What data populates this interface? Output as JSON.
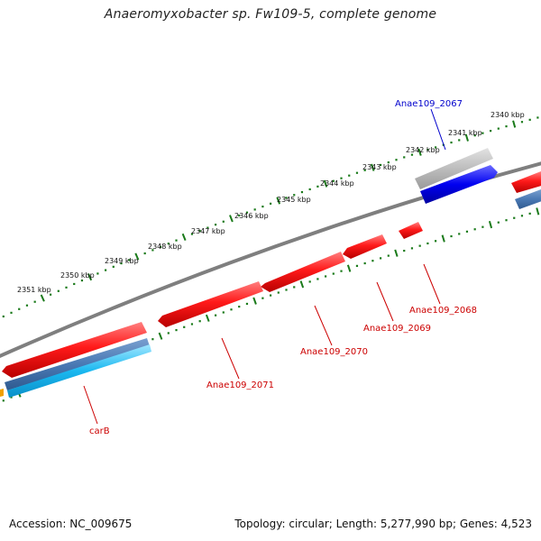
{
  "title": "Anaeromyxobacter sp. Fw109-5, complete genome",
  "footer": {
    "accession": "Accession: NC_009675",
    "summary": "Topology: circular; Length: 5,277,990 bp; Genes: 4,523"
  },
  "colors": {
    "forward_cds": "#ff0000",
    "reverse_cds": "#4a79b4",
    "highlight_cds": "#0000ee",
    "other_feature": "#bfbfbf",
    "backbone": "#7f7f7f",
    "tick": "#1a7a1a",
    "label_forward": "#0000cc",
    "label_reverse": "#cc0000"
  },
  "ticks": [
    {
      "label": "2340 kbp"
    },
    {
      "label": "2341 kbp"
    },
    {
      "label": "2342 kbp"
    },
    {
      "label": "2343 kbp"
    },
    {
      "label": "2344 kbp"
    },
    {
      "label": "2345 kbp"
    },
    {
      "label": "2346 kbp"
    },
    {
      "label": "2347 kbp"
    },
    {
      "label": "2348 kbp"
    },
    {
      "label": "2349 kbp"
    },
    {
      "label": "2350 kbp"
    },
    {
      "label": "2351 kbp"
    }
  ],
  "gene_labels": [
    {
      "label": "Anae109_2067",
      "strand": "forward"
    },
    {
      "label": "Anae109_2068",
      "strand": "reverse"
    },
    {
      "label": "Anae109_2069",
      "strand": "reverse"
    },
    {
      "label": "Anae109_2070",
      "strand": "reverse"
    },
    {
      "label": "Anae109_2071",
      "strand": "reverse"
    },
    {
      "label": "carB",
      "strand": "reverse"
    }
  ]
}
